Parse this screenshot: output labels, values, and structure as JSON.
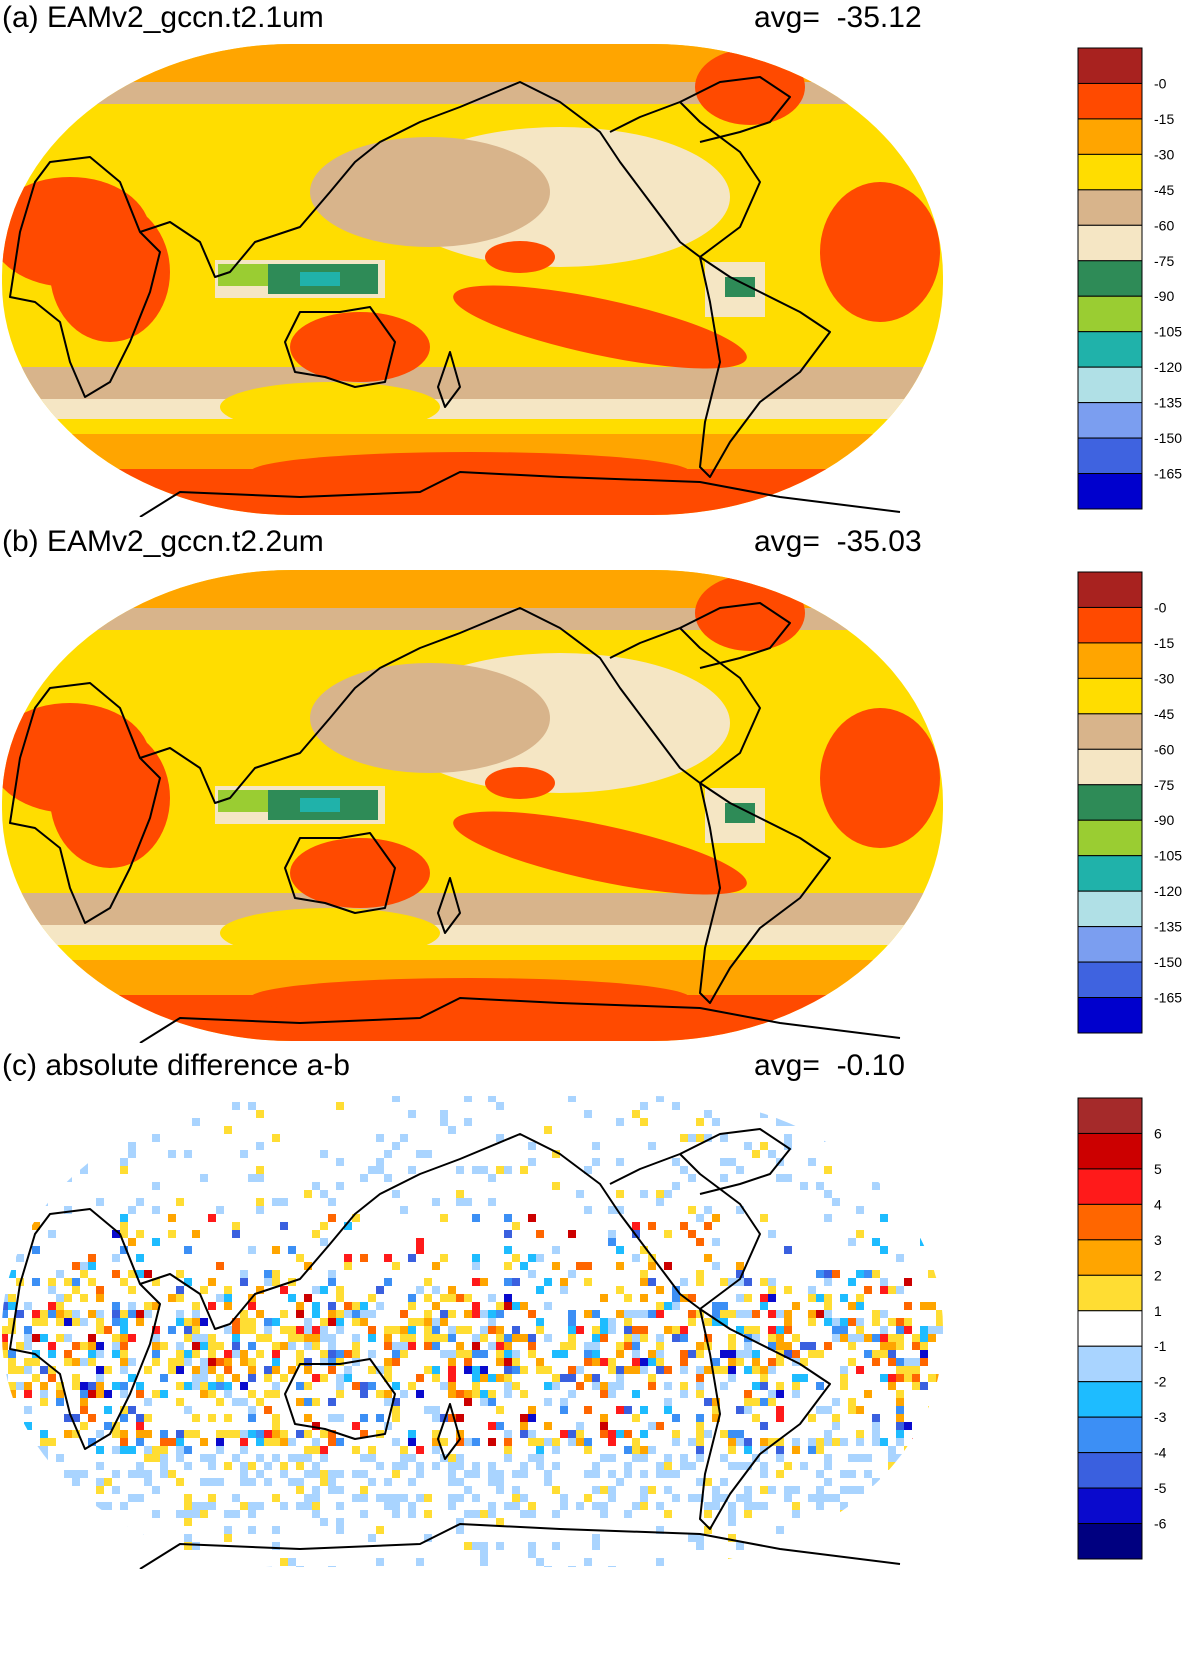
{
  "panels": [
    {
      "id": "a",
      "title": "(a) EAMv2_gccn.t2.1um",
      "avg_label": "avg=",
      "avg_value": "-35.12"
    },
    {
      "id": "b",
      "title": "(b) EAMv2_gccn.t2.2um",
      "avg_label": "avg=",
      "avg_value": "-35.03"
    },
    {
      "id": "c",
      "title": "(c) absolute difference a-b",
      "avg_label": "avg=",
      "avg_value": "-0.10"
    }
  ],
  "colorbars": {
    "main": {
      "labels": [
        "-0",
        "-15",
        "-30",
        "-45",
        "-60",
        "-75",
        "-90",
        "-105",
        "-120",
        "-135",
        "-150",
        "-165"
      ],
      "colors": [
        "#a8221f",
        "#ff4a00",
        "#ffa500",
        "#ffdd00",
        "#d8b48b",
        "#f5e6c4",
        "#2e8b57",
        "#9acd32",
        "#20b2aa",
        "#b0e0e6",
        "#7b9ef0",
        "#3f63e0",
        "#0000cd"
      ]
    },
    "diff": {
      "labels": [
        "6",
        "5",
        "4",
        "3",
        "2",
        "1",
        "-1",
        "-2",
        "-3",
        "-4",
        "-5",
        "-6"
      ],
      "colors": [
        "#a52a2a",
        "#cc0000",
        "#ff1a1a",
        "#ff6600",
        "#ffa500",
        "#ffdd33",
        "#ffffff",
        "#a9d4ff",
        "#1ebcff",
        "#3c8ff5",
        "#3a60df",
        "#0a0acd",
        "#000080"
      ]
    }
  }
}
